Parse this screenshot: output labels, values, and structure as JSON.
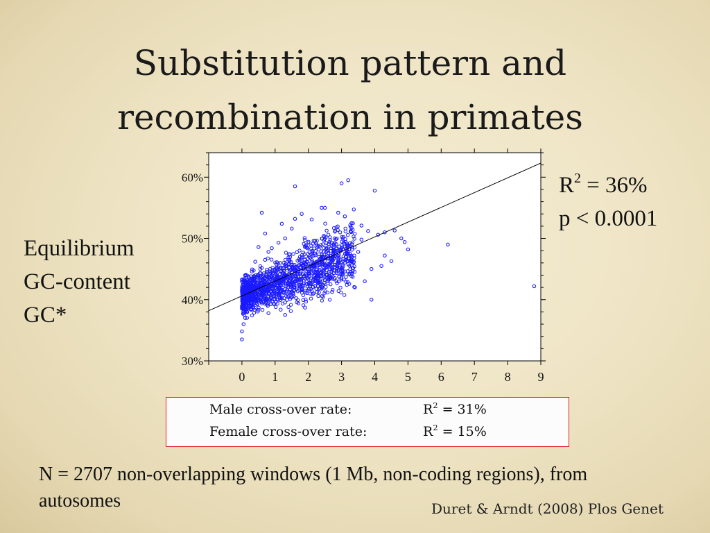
{
  "slide": {
    "title_lines": [
      "Substitution pattern and",
      "recombination in primates"
    ],
    "y_label_lines": [
      "Equilibrium",
      "GC-content",
      "GC*"
    ],
    "stats": {
      "r2_prefix": "R",
      "r2_sup": "2",
      "r2_suffix": " = 36%",
      "p_value": "p < 0.0001"
    },
    "rates": [
      {
        "label": "Male cross-over rate:",
        "r_prefix": "R",
        "r_sup": "2",
        "r_suffix": " = 31%"
      },
      {
        "label": "Female cross-over rate:",
        "r_prefix": "R",
        "r_sup": "2",
        "r_suffix": " = 15%"
      }
    ],
    "note": "N = 2707 non-overlapping windows (1 Mb, non-coding regions), from autosomes",
    "citation": "Duret & Arndt (2008) Plos Genet",
    "colors": {
      "points": "#1a1aff",
      "line": "#000000",
      "box_border": "#e02020"
    }
  },
  "chart_data": {
    "type": "scatter",
    "x_range": [
      -1,
      9
    ],
    "y_range": [
      30,
      64
    ],
    "x_ticks": [
      0,
      1,
      2,
      3,
      4,
      5,
      6,
      7,
      8,
      9
    ],
    "x_tick_labels": [
      "0",
      "1",
      "2",
      "3",
      "4",
      "5",
      "6",
      "7",
      "8",
      "9"
    ],
    "y_ticks": [
      30,
      40,
      50,
      60
    ],
    "y_tick_labels": [
      "30%",
      "40%",
      "50%",
      "60%"
    ],
    "grid": false,
    "n_points": 2707,
    "regression_line": {
      "x": [
        -1,
        9
      ],
      "y": [
        38.2,
        62.3
      ]
    },
    "series": [
      {
        "points": [
          [
            0,
            33.5
          ],
          [
            0,
            34.8
          ],
          [
            0.05,
            36
          ],
          [
            0.1,
            37
          ],
          [
            0.05,
            38
          ],
          [
            0.1,
            38.8
          ],
          [
            0.2,
            40
          ],
          [
            0.1,
            41.5
          ],
          [
            0.3,
            41.8
          ],
          [
            0.2,
            42.8
          ],
          [
            0.1,
            44
          ],
          [
            0.4,
            43.2
          ],
          [
            0.3,
            44.6
          ],
          [
            0.5,
            44
          ],
          [
            0.6,
            45.2
          ],
          [
            0.4,
            46.2
          ],
          [
            0.7,
            46.5
          ],
          [
            0.8,
            47.8
          ],
          [
            0.5,
            48.6
          ],
          [
            0.9,
            48.4
          ],
          [
            1.1,
            49.3
          ],
          [
            0.7,
            50.8
          ],
          [
            1.3,
            50
          ],
          [
            1.5,
            51.6
          ],
          [
            1.2,
            52.4
          ],
          [
            0.6,
            54.2
          ],
          [
            1.6,
            53.2
          ],
          [
            1.8,
            54
          ],
          [
            2.1,
            53.1
          ],
          [
            2.4,
            55
          ],
          [
            2.5,
            55
          ],
          [
            2.9,
            54.2
          ],
          [
            3.1,
            53.6
          ],
          [
            3.3,
            52.5
          ],
          [
            3.6,
            52.1
          ],
          [
            3.8,
            51.2
          ],
          [
            4.1,
            50.6
          ],
          [
            4.3,
            51
          ],
          [
            4.6,
            51.3
          ],
          [
            4.8,
            50
          ],
          [
            5,
            48.2
          ],
          [
            4.5,
            46.3
          ],
          [
            4.2,
            45.5
          ],
          [
            3.9,
            45
          ],
          [
            3.7,
            43
          ],
          [
            3.3,
            44.2
          ],
          [
            3,
            45.1
          ],
          [
            2.7,
            44
          ],
          [
            2.4,
            41.8
          ],
          [
            1.9,
            38.7
          ],
          [
            1.7,
            39.4
          ],
          [
            1.3,
            37.5
          ],
          [
            0.8,
            37.8
          ],
          [
            0.6,
            39.4
          ],
          [
            2.3,
            40.6
          ],
          [
            3.4,
            42
          ],
          [
            3.9,
            40
          ],
          [
            1.6,
            58.5
          ],
          [
            3,
            59
          ],
          [
            3.2,
            59.5
          ],
          [
            4,
            57.8
          ],
          [
            6.2,
            49
          ],
          [
            8.8,
            42.2
          ],
          [
            1.1,
            42.4
          ],
          [
            1.5,
            43.6
          ],
          [
            2,
            45.4
          ],
          [
            2.6,
            47.6
          ],
          [
            3.2,
            48.8
          ],
          [
            3.5,
            47.8
          ],
          [
            4.3,
            47.2
          ],
          [
            2.8,
            51.1
          ],
          [
            2.2,
            49.6
          ],
          [
            1.4,
            46.9
          ],
          [
            0.9,
            44.5
          ],
          [
            1.8,
            41.7
          ],
          [
            2.5,
            43.2
          ],
          [
            1.2,
            40.2
          ],
          [
            0.3,
            39
          ],
          [
            3.6,
            49.8
          ],
          [
            4.9,
            49.4
          ]
        ]
      }
    ]
  }
}
